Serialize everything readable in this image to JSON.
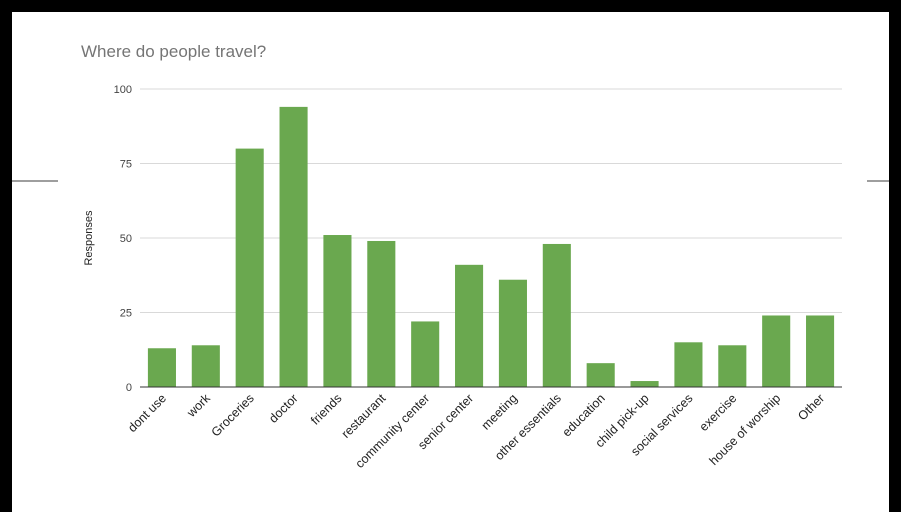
{
  "colors": {
    "bar": "#6aa84f",
    "grid": "#d9d9d9",
    "axis": "#333333",
    "title": "#757575"
  },
  "chart_data": {
    "type": "bar",
    "title": "Where do people travel?",
    "xlabel": "",
    "ylabel": "Responses",
    "ylim": [
      0,
      100
    ],
    "yticks": [
      0,
      25,
      50,
      75,
      100
    ],
    "grid": true,
    "categories": [
      "dont use",
      "work",
      "Groceries",
      "doctor",
      "friends",
      "restaurant",
      "community center",
      "senior center",
      "meeting",
      "other essentials",
      "education",
      "child pick-up",
      "social services",
      "exercise",
      "house of worship",
      "Other"
    ],
    "values": [
      13,
      14,
      80,
      94,
      51,
      49,
      22,
      41,
      36,
      48,
      8,
      2,
      15,
      14,
      24,
      24
    ]
  }
}
